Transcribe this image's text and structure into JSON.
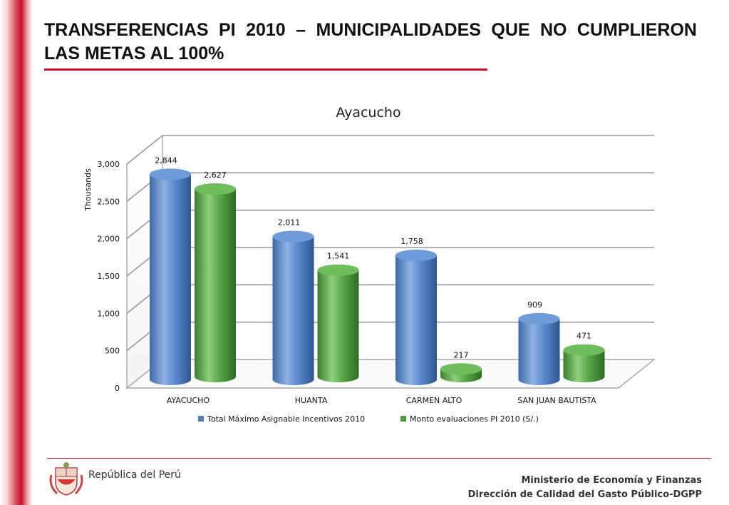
{
  "slide": {
    "title": "TRANSFERENCIAS PI 2010 – MUNICIPALIDADES QUE  NO CUMPLIERON LAS METAS AL 100%",
    "footer": {
      "republic": "República del Perú",
      "ministry": "Ministerio de Economía y Finanzas",
      "direction": "Dirección de Calidad del Gasto Público-DGPP"
    }
  },
  "chart_data": {
    "type": "bar",
    "title": "Ayacucho",
    "ylabel": "Thousands",
    "xlabel": "",
    "ylim": [
      0,
      3000
    ],
    "yticks": [
      0,
      500,
      1000,
      1500,
      2000,
      2500,
      3000
    ],
    "ytick_labels": [
      "0",
      "500",
      "1,000",
      "1,500",
      "2,000",
      "2,500",
      "3,000"
    ],
    "categories": [
      "AYACUCHO",
      "HUANTA",
      "CARMEN ALTO",
      "SAN JUAN BAUTISTA"
    ],
    "series": [
      {
        "name": "Total Máximo Asignable Incentivos 2010",
        "values": [
          2844,
          2011,
          1758,
          909
        ],
        "labels": [
          "2,844",
          "2,011",
          "1,758",
          "909"
        ],
        "color": "#4f81bd"
      },
      {
        "name": "Monto evaluaciones PI 2010 (S/.)",
        "values": [
          2627,
          1541,
          217,
          471
        ],
        "labels": [
          "2,627",
          "1,541",
          "217",
          "471"
        ],
        "color": "#4e9a3f"
      }
    ],
    "grid": true,
    "legend": "bottom"
  }
}
